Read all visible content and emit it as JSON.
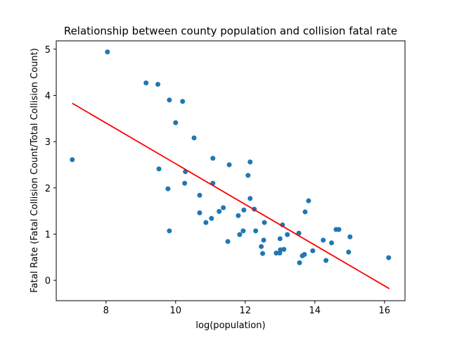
{
  "chart_data": {
    "type": "scatter",
    "title": "Relationship between county population and collision fatal rate",
    "xlabel": "log(population)",
    "ylabel": "Fatal Rate (Fatal Collision Count/Total Collision Count)",
    "xlim": [
      6.57,
      16.59
    ],
    "ylim": [
      -0.44,
      5.18
    ],
    "xticks": [
      8,
      10,
      12,
      14,
      16
    ],
    "yticks": [
      0,
      1,
      2,
      3,
      4,
      5
    ],
    "grid": false,
    "point_color": "#1f77b4",
    "line_color": "#ff0000",
    "series": [
      {
        "name": "counties",
        "kind": "scatter",
        "points": [
          [
            7.03,
            2.61
          ],
          [
            8.04,
            4.94
          ],
          [
            9.15,
            4.27
          ],
          [
            9.49,
            4.24
          ],
          [
            9.82,
            3.9
          ],
          [
            10.2,
            3.87
          ],
          [
            10.0,
            3.41
          ],
          [
            10.53,
            3.08
          ],
          [
            11.07,
            2.64
          ],
          [
            9.52,
            2.41
          ],
          [
            10.28,
            2.35
          ],
          [
            9.78,
            1.98
          ],
          [
            10.26,
            2.1
          ],
          [
            9.82,
            1.07
          ],
          [
            11.54,
            2.5
          ],
          [
            12.14,
            2.56
          ],
          [
            12.08,
            2.27
          ],
          [
            11.07,
            2.1
          ],
          [
            10.69,
            1.84
          ],
          [
            12.14,
            1.77
          ],
          [
            10.69,
            1.46
          ],
          [
            11.37,
            1.57
          ],
          [
            11.25,
            1.49
          ],
          [
            11.03,
            1.34
          ],
          [
            10.87,
            1.25
          ],
          [
            11.96,
            1.52
          ],
          [
            11.8,
            1.4
          ],
          [
            12.26,
            1.54
          ],
          [
            12.55,
            1.25
          ],
          [
            11.94,
            1.07
          ],
          [
            12.3,
            1.07
          ],
          [
            11.84,
            0.99
          ],
          [
            11.5,
            0.84
          ],
          [
            12.53,
            0.87
          ],
          [
            13.82,
            1.72
          ],
          [
            13.72,
            1.48
          ],
          [
            13.07,
            1.2
          ],
          [
            13.21,
            0.99
          ],
          [
            13.54,
            1.02
          ],
          [
            13.0,
            0.9
          ],
          [
            12.46,
            0.73
          ],
          [
            12.5,
            0.58
          ],
          [
            12.89,
            0.59
          ],
          [
            13.01,
            0.66
          ],
          [
            12.99,
            0.59
          ],
          [
            13.11,
            0.67
          ],
          [
            13.64,
            0.53
          ],
          [
            13.7,
            0.56
          ],
          [
            13.56,
            0.38
          ],
          [
            13.94,
            0.64
          ],
          [
            14.24,
            0.87
          ],
          [
            14.48,
            0.81
          ],
          [
            14.61,
            1.1
          ],
          [
            14.69,
            1.1
          ],
          [
            15.01,
            0.94
          ],
          [
            14.97,
            0.61
          ],
          [
            14.32,
            0.43
          ],
          [
            16.12,
            0.49
          ]
        ]
      },
      {
        "name": "regression",
        "kind": "line",
        "points": [
          [
            7.03,
            3.83
          ],
          [
            16.14,
            -0.18
          ]
        ]
      }
    ]
  }
}
